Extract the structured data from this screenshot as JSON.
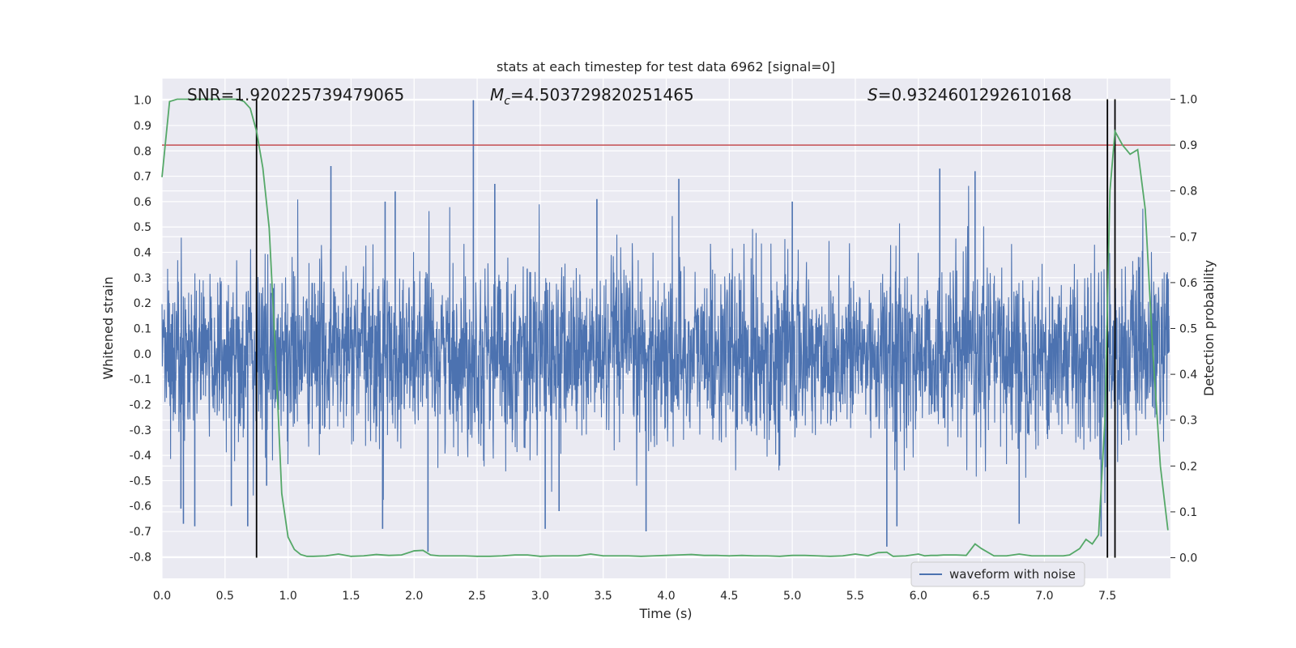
{
  "chart_data": {
    "type": "line",
    "title": "stats at each timestep for test data 6962 [signal=0]",
    "xlabel": "Time (s)",
    "ylabel_left": "Whitened strain",
    "ylabel_right": "Detection probability",
    "xlim": [
      0.0,
      8.0
    ],
    "ylim_left": [
      -0.885,
      1.085
    ],
    "ylim_right": [
      -0.045,
      1.045
    ],
    "x_ticks": [
      "0.0",
      "0.5",
      "1.0",
      "1.5",
      "2.0",
      "2.5",
      "3.0",
      "3.5",
      "4.0",
      "4.5",
      "5.0",
      "5.5",
      "6.0",
      "6.5",
      "7.0",
      "7.5"
    ],
    "y_left_ticks": [
      "-0.8",
      "-0.7",
      "-0.6",
      "-0.5",
      "-0.4",
      "-0.3",
      "-0.2",
      "-0.1",
      "0.0",
      "0.1",
      "0.2",
      "0.3",
      "0.4",
      "0.5",
      "0.6",
      "0.7",
      "0.8",
      "0.9",
      "1.0"
    ],
    "y_right_ticks": [
      "0.0",
      "0.1",
      "0.2",
      "0.3",
      "0.4",
      "0.5",
      "0.6",
      "0.7",
      "0.8",
      "0.9",
      "1.0"
    ],
    "grid": true,
    "legend": {
      "position": "lower-right",
      "entries": [
        "waveform with noise"
      ]
    },
    "annotations": {
      "snr": "SNR=1.920225739479065",
      "mc_symbol": "M",
      "mc_sub": "c",
      "mc_value": "=4.503729820251465",
      "s_symbol": "S",
      "s_value": "=0.9324601292610168"
    },
    "colors": {
      "strain": "#4c72b0",
      "probability": "#55a868",
      "threshold": "#c44e52",
      "markers": "#000000",
      "background": "#eaeaf2",
      "grid": "#ffffff"
    },
    "series": [
      {
        "name": "waveform with noise",
        "axis": "left",
        "description_points": {
          "spikes": [
            [
              0.15,
              -0.61
            ],
            [
              0.17,
              -0.67
            ],
            [
              0.26,
              -0.68
            ],
            [
              0.55,
              -0.6
            ],
            [
              0.68,
              -0.68
            ],
            [
              0.83,
              -0.52
            ],
            [
              1.34,
              0.74
            ],
            [
              1.75,
              -0.69
            ],
            [
              1.77,
              0.6
            ],
            [
              1.85,
              0.64
            ],
            [
              2.11,
              -0.78
            ],
            [
              2.47,
              1.0
            ],
            [
              2.64,
              0.67
            ],
            [
              3.04,
              -0.69
            ],
            [
              3.15,
              -0.62
            ],
            [
              3.45,
              0.61
            ],
            [
              3.84,
              -0.7
            ],
            [
              4.1,
              0.69
            ],
            [
              5.0,
              0.6
            ],
            [
              5.75,
              -0.76
            ],
            [
              5.83,
              -0.68
            ],
            [
              6.17,
              0.73
            ],
            [
              6.45,
              0.72
            ],
            [
              6.8,
              -0.67
            ],
            [
              7.45,
              -0.72
            ],
            [
              7.5,
              0.58
            ]
          ],
          "typical_envelope": [
            -0.45,
            0.45
          ]
        }
      },
      {
        "name": "detection probability",
        "axis": "right",
        "x": [
          0.0,
          0.06,
          0.12,
          0.2,
          0.3,
          0.4,
          0.5,
          0.6,
          0.65,
          0.7,
          0.75,
          0.8,
          0.85,
          0.9,
          0.95,
          1.0,
          1.05,
          1.1,
          1.15,
          1.2,
          1.3,
          1.4,
          1.5,
          1.6,
          1.7,
          1.8,
          1.9,
          2.0,
          2.07,
          2.13,
          2.2,
          2.3,
          2.4,
          2.5,
          2.6,
          2.7,
          2.8,
          2.9,
          3.0,
          3.1,
          3.2,
          3.3,
          3.4,
          3.5,
          3.6,
          3.7,
          3.8,
          3.9,
          4.0,
          4.1,
          4.2,
          4.3,
          4.4,
          4.5,
          4.6,
          4.7,
          4.8,
          4.9,
          5.0,
          5.1,
          5.2,
          5.3,
          5.4,
          5.5,
          5.6,
          5.68,
          5.75,
          5.8,
          5.9,
          6.0,
          6.05,
          6.1,
          6.15,
          6.2,
          6.3,
          6.38,
          6.45,
          6.5,
          6.6,
          6.7,
          6.8,
          6.9,
          7.0,
          7.1,
          7.15,
          7.2,
          7.28,
          7.33,
          7.38,
          7.43,
          7.48,
          7.52,
          7.56,
          7.62,
          7.68,
          7.74,
          7.8,
          7.86,
          7.92,
          7.98
        ],
        "y": [
          0.83,
          0.995,
          1.0,
          1.0,
          1.0,
          1.0,
          1.0,
          1.0,
          0.995,
          0.98,
          0.93,
          0.85,
          0.72,
          0.45,
          0.14,
          0.045,
          0.018,
          0.007,
          0.003,
          0.003,
          0.004,
          0.008,
          0.003,
          0.004,
          0.007,
          0.005,
          0.006,
          0.015,
          0.016,
          0.006,
          0.004,
          0.004,
          0.004,
          0.003,
          0.003,
          0.004,
          0.006,
          0.006,
          0.003,
          0.004,
          0.004,
          0.004,
          0.008,
          0.004,
          0.004,
          0.004,
          0.003,
          0.004,
          0.005,
          0.006,
          0.007,
          0.005,
          0.005,
          0.004,
          0.005,
          0.004,
          0.004,
          0.003,
          0.005,
          0.005,
          0.004,
          0.003,
          0.004,
          0.008,
          0.004,
          0.011,
          0.012,
          0.003,
          0.004,
          0.008,
          0.004,
          0.005,
          0.005,
          0.006,
          0.006,
          0.005,
          0.03,
          0.02,
          0.004,
          0.004,
          0.008,
          0.004,
          0.004,
          0.004,
          0.004,
          0.006,
          0.02,
          0.04,
          0.03,
          0.05,
          0.3,
          0.8,
          0.93,
          0.9,
          0.88,
          0.89,
          0.76,
          0.45,
          0.2,
          0.06
        ]
      }
    ],
    "threshold_right": 0.9,
    "vertical_markers_x": [
      0.75,
      7.5,
      7.56
    ]
  }
}
